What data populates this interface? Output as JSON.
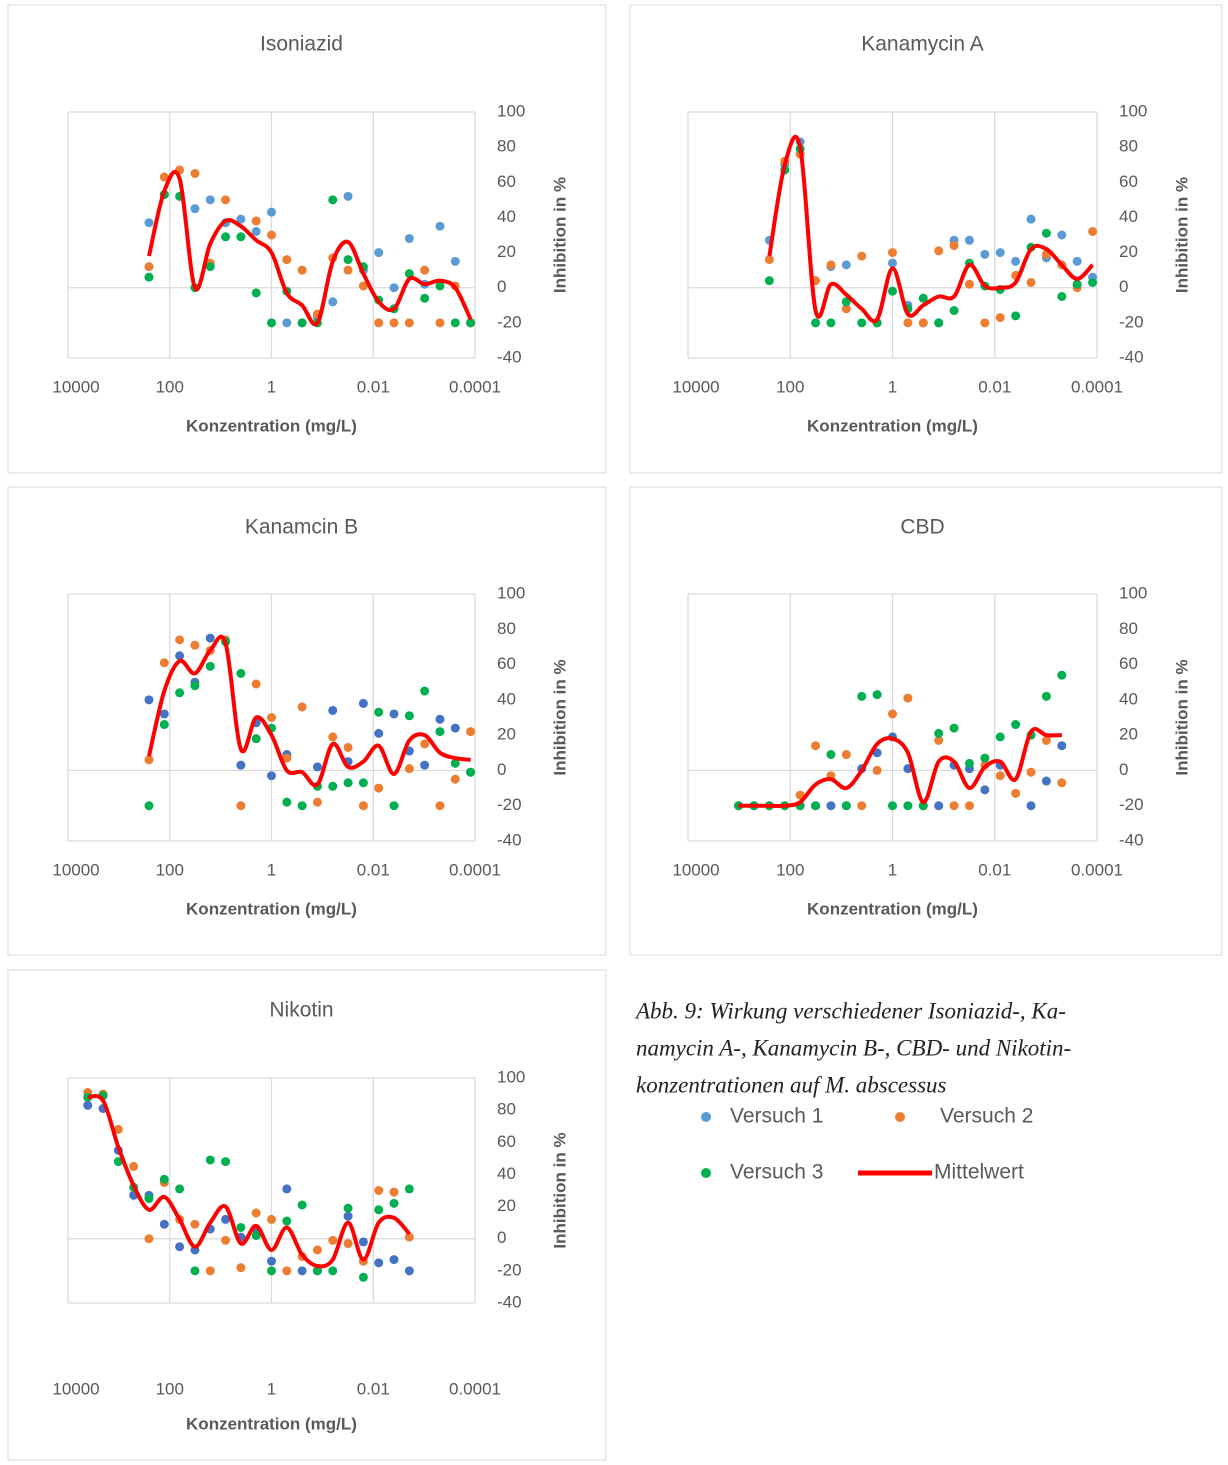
{
  "chart_data": [
    {
      "type": "scatter",
      "title": "Isoniazid",
      "x_label": "Konzentration (mg/L)",
      "y_label": "Inhibition in %",
      "xscale": "log",
      "xlim": [
        10000,
        0.0001
      ],
      "xticks": [
        10000,
        100,
        1,
        0.01,
        0.0001
      ],
      "ylim": [
        -40,
        100
      ],
      "yticks": [
        -40,
        -20,
        0,
        20,
        40,
        60,
        80,
        100
      ],
      "x": [
        256,
        128,
        64,
        32,
        16,
        8,
        4,
        2,
        1,
        0.5,
        0.25,
        0.125,
        0.0625,
        0.03125,
        0.015625,
        0.0078125,
        0.00390625,
        0.001953125,
        0.0009765625,
        0.00048828125,
        0.000244140625,
        0.0001220703125
      ],
      "series": [
        {
          "style": "marker",
          "color": "#5b9bd5",
          "values": [
            37,
            53,
            null,
            45,
            50,
            37,
            39,
            32,
            43,
            -20,
            -20,
            -17,
            -8,
            52,
            10,
            20,
            0,
            28,
            2,
            35,
            15,
            -20
          ]
        },
        {
          "style": "marker",
          "color": "#ed7d31",
          "values": [
            12,
            63,
            67,
            65,
            14,
            50,
            null,
            38,
            30,
            16,
            10,
            -15,
            17,
            10,
            1,
            -20,
            -20,
            -20,
            10,
            -20,
            1,
            -20
          ]
        },
        {
          "style": "marker",
          "color": "#00b050",
          "values": [
            6,
            53,
            52,
            0,
            12,
            29,
            29,
            -3,
            -20,
            -2,
            -20,
            -20,
            50,
            16,
            12,
            -7,
            -12,
            8,
            -6,
            1,
            -20,
            -20
          ]
        },
        {
          "style": "line",
          "color": "#ff0000",
          "values": [
            18,
            55,
            62,
            0,
            25,
            38,
            35,
            27,
            20,
            -3,
            -10,
            -20,
            15,
            26,
            8,
            -8,
            -12,
            5,
            2,
            4,
            0,
            -18
          ]
        }
      ]
    },
    {
      "type": "scatter",
      "title": "Kanamycin A",
      "x_label": "Konzentration (mg/L)",
      "y_label": "Inhibition in %",
      "xscale": "log",
      "xlim": [
        10000,
        0.0001
      ],
      "xticks": [
        10000,
        100,
        1,
        0.01,
        0.0001
      ],
      "ylim": [
        -40,
        100
      ],
      "yticks": [
        -40,
        -20,
        0,
        20,
        40,
        60,
        80,
        100
      ],
      "x": [
        256,
        128,
        64,
        32,
        16,
        8,
        4,
        2,
        1,
        0.5,
        0.25,
        0.125,
        0.0625,
        0.03125,
        0.015625,
        0.0078125,
        0.00390625,
        0.001953125,
        0.0009765625,
        0.00048828125,
        0.000244140625,
        0.0001220703125
      ],
      "series": [
        {
          "style": "marker",
          "color": "#5b9bd5",
          "values": [
            27,
            70,
            83,
            null,
            12,
            13,
            null,
            -20,
            14,
            -10,
            -20,
            -20,
            27,
            27,
            19,
            20,
            15,
            39,
            17,
            30,
            15,
            6
          ]
        },
        {
          "style": "marker",
          "color": "#ed7d31",
          "values": [
            16,
            72,
            76,
            4,
            13,
            -12,
            18,
            -20,
            20,
            -20,
            -20,
            21,
            24,
            2,
            -20,
            -17,
            7,
            3,
            19,
            13,
            0,
            32
          ]
        },
        {
          "style": "marker",
          "color": "#00b050",
          "values": [
            4,
            67,
            79,
            -20,
            -20,
            -8,
            -20,
            -20,
            -2,
            -12,
            -6,
            -20,
            -13,
            14,
            1,
            -1,
            -16,
            23,
            31,
            -5,
            2,
            3
          ]
        },
        {
          "style": "line",
          "color": "#ff0000",
          "values": [
            18,
            70,
            80,
            -13,
            2,
            -4,
            -12,
            -18,
            11,
            -15,
            -10,
            -5,
            -5,
            13,
            1,
            0,
            3,
            22,
            22,
            13,
            5,
            13
          ]
        }
      ]
    },
    {
      "type": "scatter",
      "title": "Kanamcin B",
      "x_label": "Konzentration (mg/L)",
      "y_label": "Inhibition in %",
      "xscale": "log",
      "xlim": [
        10000,
        0.0001
      ],
      "xticks": [
        10000,
        100,
        1,
        0.01,
        0.0001
      ],
      "ylim": [
        -40,
        100
      ],
      "yticks": [
        -40,
        -20,
        0,
        20,
        40,
        60,
        80,
        100
      ],
      "x": [
        256,
        128,
        64,
        32,
        16,
        8,
        4,
        2,
        1,
        0.5,
        0.25,
        0.125,
        0.0625,
        0.03125,
        0.015625,
        0.0078125,
        0.00390625,
        0.001953125,
        0.0009765625,
        0.00048828125,
        0.000244140625,
        0.0001220703125
      ],
      "series": [
        {
          "style": "marker",
          "color": "#4472c4",
          "values": [
            40,
            32,
            65,
            50,
            75,
            73,
            3,
            27,
            -3,
            9,
            null,
            2,
            34,
            5,
            38,
            21,
            32,
            11,
            3,
            29,
            24,
            -1
          ]
        },
        {
          "style": "marker",
          "color": "#ed7d31",
          "values": [
            6,
            61,
            74,
            71,
            68,
            74,
            -20,
            49,
            30,
            7,
            36,
            -18,
            19,
            13,
            -20,
            -10,
            null,
            1,
            15,
            -20,
            -5,
            22
          ]
        },
        {
          "style": "marker",
          "color": "#00b050",
          "values": [
            -20,
            26,
            44,
            48,
            59,
            73,
            55,
            18,
            24,
            -18,
            -20,
            -9,
            -9,
            -7,
            -7,
            33,
            -20,
            31,
            45,
            22,
            4,
            -1
          ]
        },
        {
          "style": "line",
          "color": "#ff0000",
          "values": [
            8,
            45,
            62,
            55,
            68,
            72,
            12,
            30,
            20,
            0,
            -1,
            -8,
            15,
            2,
            5,
            14,
            -2,
            17,
            20,
            10,
            7,
            6
          ]
        }
      ]
    },
    {
      "type": "scatter",
      "title": "CBD",
      "x_label": "Konzentration (mg/L)",
      "y_label": "Inhibition in %",
      "xscale": "log",
      "xlim": [
        10000,
        0.0001
      ],
      "xticks": [
        10000,
        100,
        1,
        0.01,
        0.0001
      ],
      "ylim": [
        -40,
        100
      ],
      "yticks": [
        -40,
        -20,
        0,
        20,
        40,
        60,
        80,
        100
      ],
      "x": [
        1024,
        512,
        256,
        128,
        64,
        32,
        16,
        8,
        4,
        2,
        1,
        0.5,
        0.25,
        0.125,
        0.0625,
        0.03125,
        0.015625,
        0.0078125,
        0.00390625,
        0.001953125,
        0.0009765625,
        0.00048828125
      ],
      "series": [
        {
          "style": "marker",
          "color": "#4472c4",
          "values": [
            -20,
            -20,
            -20,
            -20,
            -20,
            -20,
            -20,
            -20,
            1,
            10,
            19,
            1,
            -20,
            -20,
            3,
            1,
            -11,
            3,
            null,
            -20,
            -6,
            14
          ]
        },
        {
          "style": "marker",
          "color": "#ed7d31",
          "values": [
            -20,
            -20,
            -20,
            -20,
            -14,
            14,
            -3,
            9,
            -20,
            0,
            32,
            41,
            -20,
            17,
            -20,
            -20,
            3,
            -3,
            -13,
            -1,
            17,
            -7
          ]
        },
        {
          "style": "marker",
          "color": "#00b050",
          "values": [
            -20,
            -20,
            -20,
            -20,
            -20,
            -20,
            9,
            -20,
            42,
            43,
            -20,
            -20,
            -20,
            21,
            24,
            4,
            7,
            19,
            26,
            20,
            42,
            54
          ]
        },
        {
          "style": "line",
          "color": "#ff0000",
          "values": [
            -20,
            -20,
            -20,
            -20,
            -18,
            -8,
            -5,
            -10,
            0,
            15,
            18,
            10,
            -18,
            5,
            5,
            -10,
            2,
            5,
            -5,
            22,
            20,
            20
          ]
        }
      ]
    },
    {
      "type": "scatter",
      "title": "Nikotin",
      "x_label": "Konzentration (mg/L)",
      "y_label": "Inhibition in %",
      "xscale": "log",
      "xlim": [
        10000,
        0.0001
      ],
      "xticks": [
        10000,
        100,
        1,
        0.01,
        0.0001
      ],
      "ylim": [
        -40,
        100
      ],
      "yticks": [
        -40,
        -20,
        0,
        20,
        40,
        60,
        80,
        100
      ],
      "x": [
        4096,
        2048,
        1024,
        512,
        256,
        128,
        64,
        32,
        16,
        8,
        4,
        2,
        1,
        0.5,
        0.25,
        0.125,
        0.0625,
        0.03125,
        0.015625,
        0.0078125,
        0.00390625,
        0.001953125
      ],
      "series": [
        {
          "style": "marker",
          "color": "#4472c4",
          "values": [
            83,
            81,
            55,
            27,
            27,
            9,
            -5,
            -7,
            6,
            12,
            1,
            6,
            -14,
            31,
            -20,
            -20,
            null,
            14,
            -2,
            -15,
            -13,
            -20
          ]
        },
        {
          "style": "marker",
          "color": "#ed7d31",
          "values": [
            91,
            90,
            68,
            45,
            0,
            35,
            12,
            9,
            -20,
            -1,
            -18,
            16,
            12,
            -20,
            -11,
            -7,
            -1,
            -3,
            -14,
            30,
            29,
            1
          ]
        },
        {
          "style": "marker",
          "color": "#00b050",
          "values": [
            88,
            89,
            48,
            32,
            25,
            37,
            31,
            -20,
            49,
            48,
            7,
            2,
            -20,
            11,
            21,
            -20,
            -20,
            19,
            -24,
            18,
            22,
            31
          ]
        },
        {
          "style": "line",
          "color": "#ff0000",
          "values": [
            88,
            86,
            57,
            33,
            18,
            26,
            12,
            -5,
            10,
            20,
            -3,
            8,
            -7,
            7,
            -10,
            -17,
            -13,
            10,
            -13,
            10,
            13,
            3
          ]
        }
      ]
    }
  ],
  "caption": {
    "lines": [
      "Abb. 9: Wirkung verschiedener Isoniazid-, Ka-",
      "namycin A-, Kanamycin B-, CBD- und Nikotin-",
      "konzentrationen auf M. abscessus"
    ]
  },
  "legend": {
    "items": [
      {
        "name": "Versuch 1",
        "color": "#5b9bd5",
        "style": "marker"
      },
      {
        "name": "Versuch 2",
        "color": "#ed7d31",
        "style": "marker"
      },
      {
        "name": "Versuch 3",
        "color": "#00b050",
        "style": "marker"
      },
      {
        "name": "Mittelwert",
        "color": "#ff0000",
        "style": "line"
      }
    ]
  }
}
